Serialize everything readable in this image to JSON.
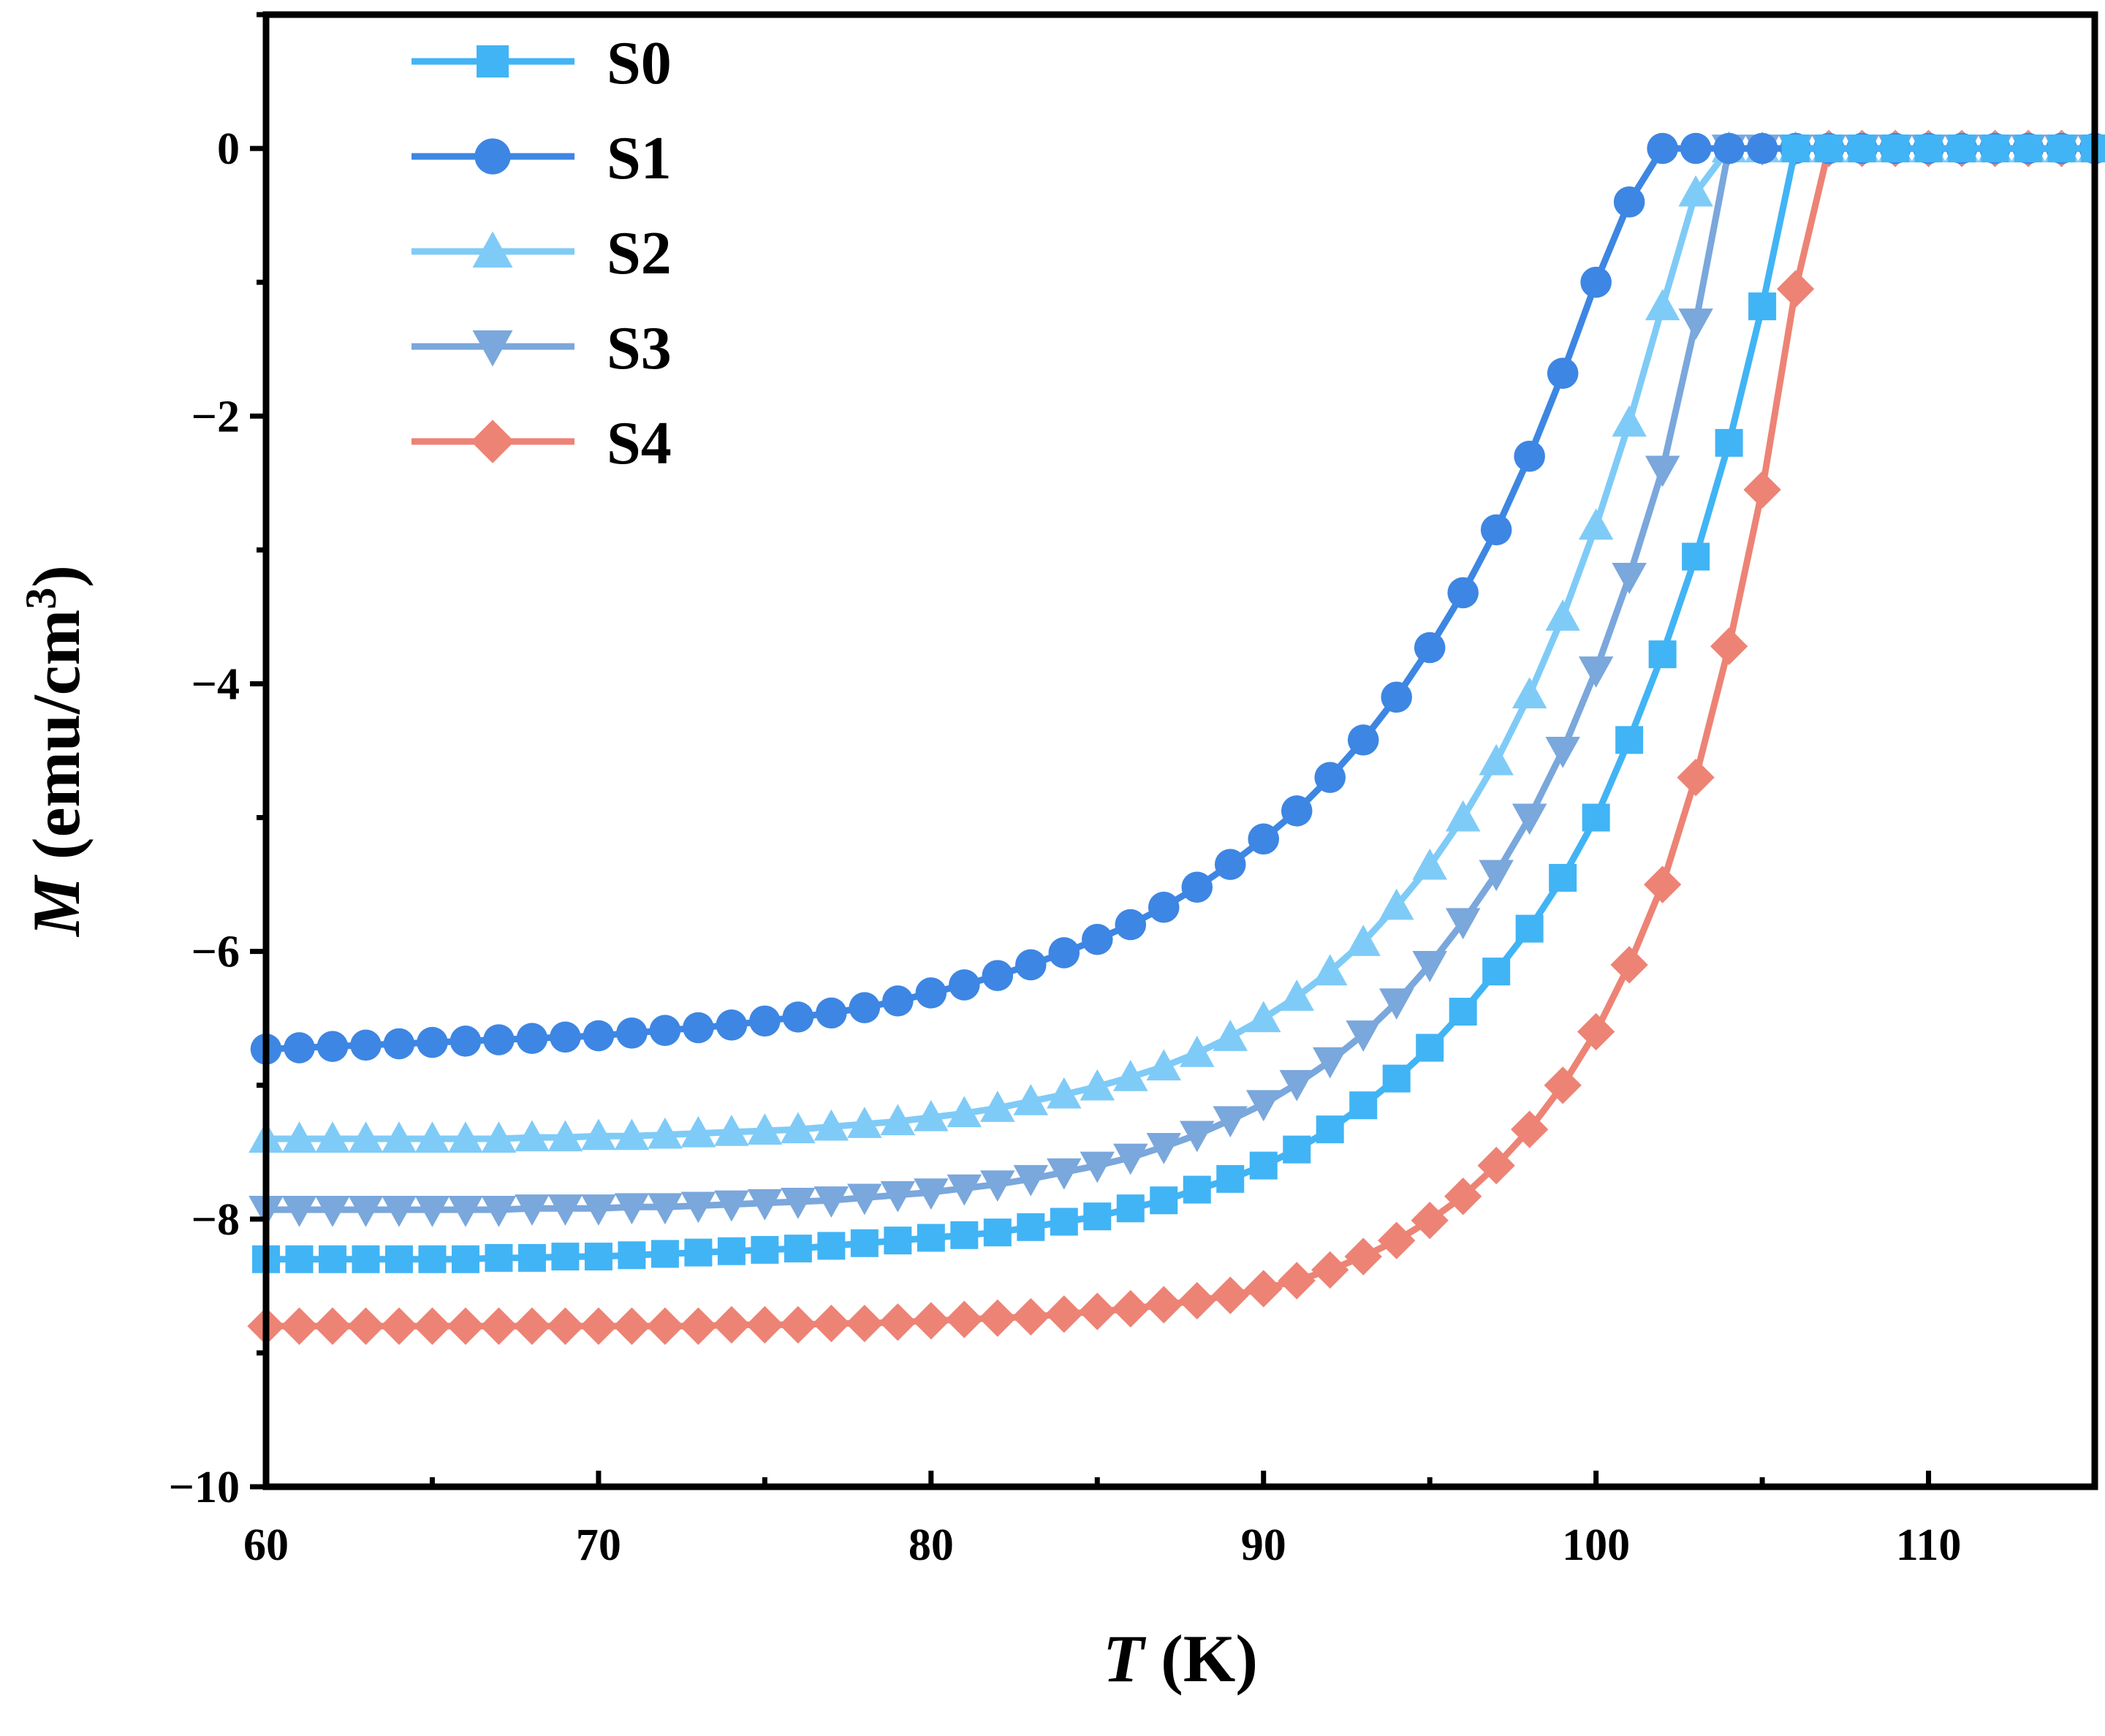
{
  "chart_data": {
    "type": "line",
    "xlabel": {
      "symbol": "T",
      "unit": "(K)"
    },
    "ylabel": {
      "symbol": "M",
      "unit": "(emu/cm",
      "unit_sup": "3",
      "unit_close": ")"
    },
    "xlim": [
      60,
      115
    ],
    "ylim": [
      -10,
      1
    ],
    "xticks": [
      60,
      70,
      80,
      90,
      100,
      110
    ],
    "yticks": [
      0,
      -2,
      -4,
      -6,
      -8,
      -10
    ],
    "ytick_labels": [
      "0",
      "−2",
      "−4",
      "−6",
      "−8",
      "−10"
    ],
    "legend_position": "top-left",
    "series": [
      {
        "name": "S0",
        "marker": "square",
        "color": "#41b4f5",
        "x": [
          60,
          61,
          62,
          63,
          64,
          65,
          66,
          67,
          68,
          69,
          70,
          71,
          72,
          73,
          74,
          75,
          76,
          77,
          78,
          79,
          80,
          81,
          82,
          83,
          84,
          85,
          86,
          87,
          88,
          89,
          90,
          91,
          92,
          93,
          94,
          95,
          96,
          97,
          98,
          99,
          100,
          101,
          102,
          103,
          104,
          105,
          106,
          107,
          108,
          109,
          110,
          111,
          112,
          113,
          114,
          115
        ],
        "y": [
          -8.3,
          -8.3,
          -8.3,
          -8.3,
          -8.3,
          -8.3,
          -8.3,
          -8.29,
          -8.29,
          -8.28,
          -8.28,
          -8.27,
          -8.26,
          -8.25,
          -8.24,
          -8.23,
          -8.22,
          -8.2,
          -8.18,
          -8.16,
          -8.14,
          -8.12,
          -8.1,
          -8.06,
          -8.02,
          -7.98,
          -7.92,
          -7.86,
          -7.78,
          -7.7,
          -7.6,
          -7.48,
          -7.33,
          -7.15,
          -6.95,
          -6.72,
          -6.45,
          -6.15,
          -5.83,
          -5.45,
          -5.0,
          -4.42,
          -3.78,
          -3.05,
          -2.2,
          -1.18,
          0,
          0,
          0,
          0,
          0,
          0,
          0,
          0,
          0,
          0
        ]
      },
      {
        "name": "S1",
        "marker": "circle",
        "color": "#3d86e3",
        "x": [
          60,
          61,
          62,
          63,
          64,
          65,
          66,
          67,
          68,
          69,
          70,
          71,
          72,
          73,
          74,
          75,
          76,
          77,
          78,
          79,
          80,
          81,
          82,
          83,
          84,
          85,
          86,
          87,
          88,
          89,
          90,
          91,
          92,
          93,
          94,
          95,
          96,
          97,
          98,
          99,
          100,
          101,
          102,
          103,
          104,
          105,
          106,
          107,
          108,
          109,
          110,
          111,
          112,
          113,
          114,
          115
        ],
        "y": [
          -6.73,
          -6.72,
          -6.71,
          -6.7,
          -6.69,
          -6.68,
          -6.67,
          -6.66,
          -6.65,
          -6.64,
          -6.63,
          -6.61,
          -6.59,
          -6.57,
          -6.55,
          -6.52,
          -6.49,
          -6.46,
          -6.42,
          -6.37,
          -6.31,
          -6.25,
          -6.18,
          -6.1,
          -6.01,
          -5.91,
          -5.8,
          -5.67,
          -5.52,
          -5.35,
          -5.16,
          -4.95,
          -4.7,
          -4.42,
          -4.1,
          -3.73,
          -3.32,
          -2.85,
          -2.3,
          -1.68,
          -1.0,
          -0.4,
          0,
          0,
          0,
          0,
          0,
          0,
          0,
          0,
          0,
          0,
          0,
          0,
          0,
          0
        ]
      },
      {
        "name": "S2",
        "marker": "triangle-up",
        "color": "#7fcbf7",
        "x": [
          60,
          61,
          62,
          63,
          64,
          65,
          66,
          67,
          68,
          69,
          70,
          71,
          72,
          73,
          74,
          75,
          76,
          77,
          78,
          79,
          80,
          81,
          82,
          83,
          84,
          85,
          86,
          87,
          88,
          89,
          90,
          91,
          92,
          93,
          94,
          95,
          96,
          97,
          98,
          99,
          100,
          101,
          102,
          103,
          104,
          105,
          106,
          107,
          108,
          109,
          110,
          111,
          112,
          113,
          114,
          115
        ],
        "y": [
          -7.4,
          -7.4,
          -7.4,
          -7.4,
          -7.4,
          -7.4,
          -7.4,
          -7.4,
          -7.39,
          -7.39,
          -7.38,
          -7.38,
          -7.37,
          -7.36,
          -7.35,
          -7.34,
          -7.33,
          -7.31,
          -7.29,
          -7.27,
          -7.24,
          -7.21,
          -7.17,
          -7.12,
          -7.07,
          -7.01,
          -6.94,
          -6.86,
          -6.76,
          -6.64,
          -6.5,
          -6.34,
          -6.15,
          -5.93,
          -5.66,
          -5.36,
          -5.0,
          -4.58,
          -4.08,
          -3.5,
          -2.82,
          -2.05,
          -1.18,
          -0.33,
          0,
          0,
          0,
          0,
          0,
          0,
          0,
          0,
          0,
          0,
          0,
          0
        ]
      },
      {
        "name": "S3",
        "marker": "triangle-down",
        "color": "#7aa7dc",
        "x": [
          60,
          61,
          62,
          63,
          64,
          65,
          66,
          67,
          68,
          69,
          70,
          71,
          72,
          73,
          74,
          75,
          76,
          77,
          78,
          79,
          80,
          81,
          82,
          83,
          84,
          85,
          86,
          87,
          88,
          89,
          90,
          91,
          92,
          93,
          94,
          95,
          96,
          97,
          98,
          99,
          100,
          101,
          102,
          103,
          104,
          105,
          106,
          107,
          108,
          109,
          110,
          111,
          112,
          113,
          114,
          115
        ],
        "y": [
          -7.93,
          -7.93,
          -7.93,
          -7.93,
          -7.93,
          -7.93,
          -7.93,
          -7.93,
          -7.92,
          -7.92,
          -7.92,
          -7.91,
          -7.91,
          -7.9,
          -7.89,
          -7.88,
          -7.87,
          -7.86,
          -7.84,
          -7.82,
          -7.8,
          -7.77,
          -7.74,
          -7.7,
          -7.65,
          -7.6,
          -7.54,
          -7.46,
          -7.37,
          -7.26,
          -7.14,
          -6.99,
          -6.82,
          -6.62,
          -6.38,
          -6.1,
          -5.78,
          -5.42,
          -5.0,
          -4.5,
          -3.9,
          -3.2,
          -2.4,
          -1.3,
          0,
          0,
          0,
          0,
          0,
          0,
          0,
          0,
          0,
          0,
          0,
          0
        ]
      },
      {
        "name": "S4",
        "marker": "diamond",
        "color": "#ed8375",
        "x": [
          60,
          61,
          62,
          63,
          64,
          65,
          66,
          67,
          68,
          69,
          70,
          71,
          72,
          73,
          74,
          75,
          76,
          77,
          78,
          79,
          80,
          81,
          82,
          83,
          84,
          85,
          86,
          87,
          88,
          89,
          90,
          91,
          92,
          93,
          94,
          95,
          96,
          97,
          98,
          99,
          100,
          101,
          102,
          103,
          104,
          105,
          106,
          107,
          108,
          109,
          110,
          111,
          112,
          113,
          114,
          115
        ],
        "y": [
          -8.8,
          -8.8,
          -8.8,
          -8.8,
          -8.8,
          -8.8,
          -8.8,
          -8.8,
          -8.8,
          -8.8,
          -8.8,
          -8.8,
          -8.8,
          -8.8,
          -8.79,
          -8.79,
          -8.79,
          -8.78,
          -8.78,
          -8.77,
          -8.76,
          -8.75,
          -8.74,
          -8.73,
          -8.71,
          -8.69,
          -8.67,
          -8.64,
          -8.61,
          -8.57,
          -8.52,
          -8.46,
          -8.38,
          -8.28,
          -8.16,
          -8.01,
          -7.83,
          -7.6,
          -7.33,
          -7.0,
          -6.6,
          -6.1,
          -5.5,
          -4.7,
          -3.72,
          -2.55,
          -1.05,
          0,
          0,
          0,
          0,
          0,
          0,
          0,
          0,
          0
        ]
      }
    ]
  }
}
